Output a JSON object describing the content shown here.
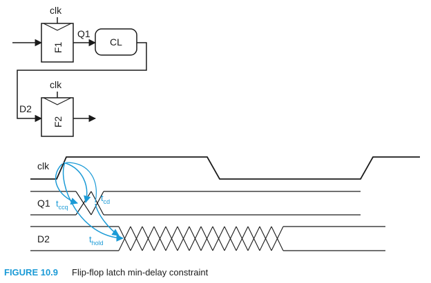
{
  "circuit": {
    "clk_label_f1": "clk",
    "clk_label_f2": "clk",
    "f1_label": "F1",
    "f2_label": "F2",
    "q1_label": "Q1",
    "d2_label": "D2",
    "cl_label": "CL"
  },
  "timing": {
    "signals": [
      "clk",
      "Q1",
      "D2"
    ],
    "tccq_main": "t",
    "tccq_sub": "ccq",
    "tcd_main": "t",
    "tcd_sub": "cd",
    "thold_main": "t",
    "thold_sub": "hold"
  },
  "caption": {
    "figure": "FIGURE 10.9",
    "text": "Flip-flop latch min-delay constraint"
  },
  "colors": {
    "accent": "#1a9ad6",
    "line": "#1a1a1a"
  }
}
